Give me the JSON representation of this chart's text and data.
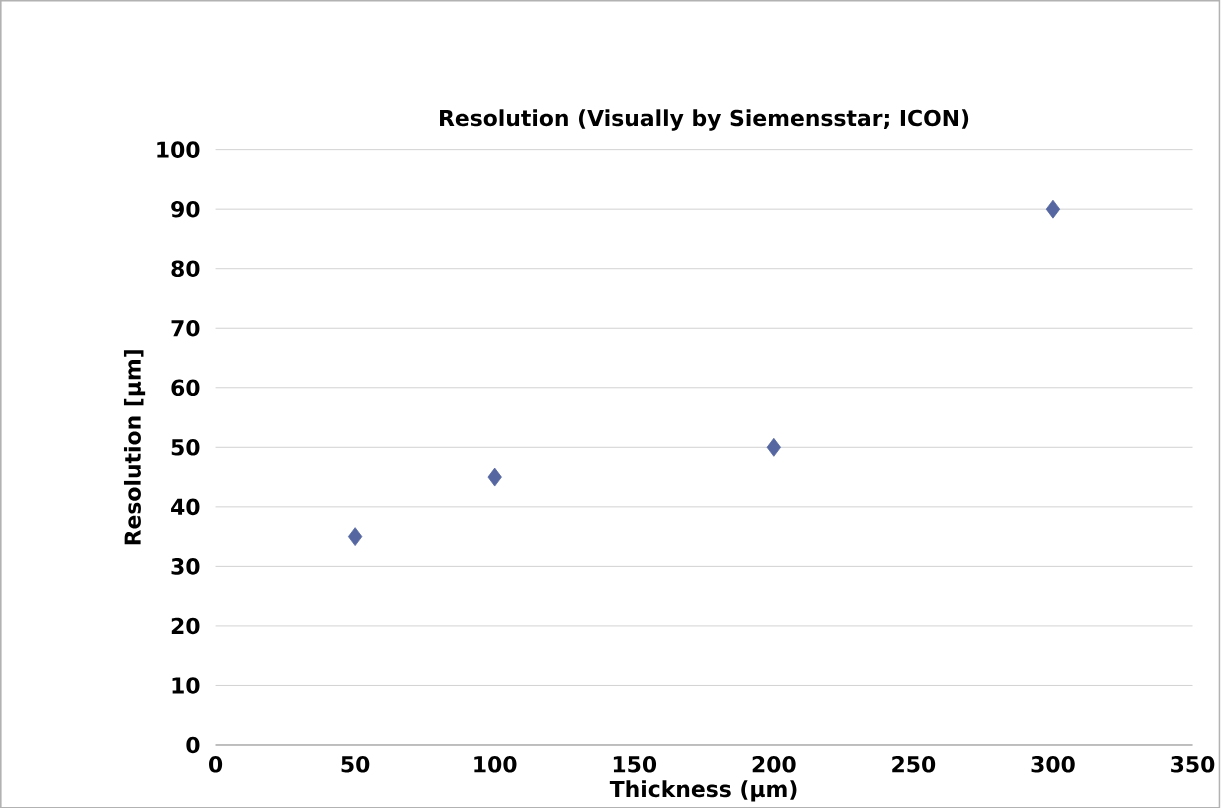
{
  "chart_data": {
    "type": "scatter",
    "title": "Resolution (Visually by Siemensstar; ICON)",
    "xlabel": "Thickness (µm)",
    "ylabel": "Resolution [µm]",
    "x": [
      50,
      100,
      200,
      300
    ],
    "series": [
      {
        "color": "#5566a0",
        "values": [
          35,
          45,
          50,
          90
        ]
      }
    ],
    "xlim": [
      0,
      350
    ],
    "xticks": [
      0,
      50,
      100,
      150,
      200,
      250,
      300,
      350
    ],
    "ylim": [
      0,
      100
    ],
    "yticks": [
      0,
      10,
      20,
      30,
      40,
      50,
      60,
      70,
      80,
      90,
      100
    ],
    "grid": "y",
    "marker": "diamond"
  }
}
